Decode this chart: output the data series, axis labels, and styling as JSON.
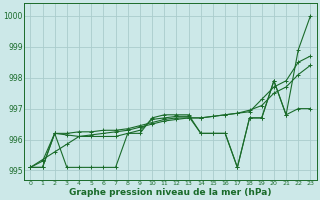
{
  "title": "Graphe pression niveau de la mer (hPa)",
  "bg_color": "#cce8e8",
  "grid_color": "#aacccc",
  "line_color": "#1a6b2a",
  "xlim": [
    -0.5,
    23.5
  ],
  "ylim": [
    994.7,
    1000.4
  ],
  "yticks": [
    995,
    996,
    997,
    998,
    999,
    1000
  ],
  "xticks": [
    0,
    1,
    2,
    3,
    4,
    5,
    6,
    7,
    8,
    9,
    10,
    11,
    12,
    13,
    14,
    15,
    16,
    17,
    18,
    19,
    20,
    21,
    22,
    23
  ],
  "s1": [
    995.1,
    995.1,
    996.2,
    995.1,
    995.1,
    995.1,
    995.1,
    995.1,
    996.2,
    996.2,
    996.7,
    996.8,
    996.8,
    996.8,
    996.2,
    996.2,
    996.2,
    995.1,
    996.7,
    996.7,
    997.9,
    996.8,
    998.9,
    1000.0
  ],
  "s2": [
    995.1,
    995.35,
    995.6,
    995.85,
    996.1,
    996.15,
    996.2,
    996.25,
    996.3,
    996.4,
    996.5,
    996.6,
    996.65,
    996.7,
    996.7,
    996.75,
    996.8,
    996.85,
    996.9,
    997.3,
    997.7,
    997.9,
    998.5,
    998.7
  ],
  "s3": [
    995.1,
    995.1,
    996.2,
    996.15,
    996.1,
    996.1,
    996.1,
    996.1,
    996.2,
    996.3,
    996.65,
    996.7,
    996.75,
    996.75,
    996.2,
    996.2,
    996.2,
    995.1,
    996.7,
    996.7,
    997.9,
    996.8,
    997.0,
    997.0
  ],
  "s4": [
    995.1,
    995.3,
    996.2,
    996.2,
    996.25,
    996.25,
    996.3,
    996.3,
    996.35,
    996.45,
    996.55,
    996.65,
    996.7,
    996.7,
    996.7,
    996.75,
    996.8,
    996.85,
    996.95,
    997.1,
    997.5,
    997.7,
    998.1,
    998.4
  ],
  "title_fontsize": 6.5,
  "tick_fontsize": 5.5,
  "linewidth": 0.8,
  "markersize": 2.5
}
